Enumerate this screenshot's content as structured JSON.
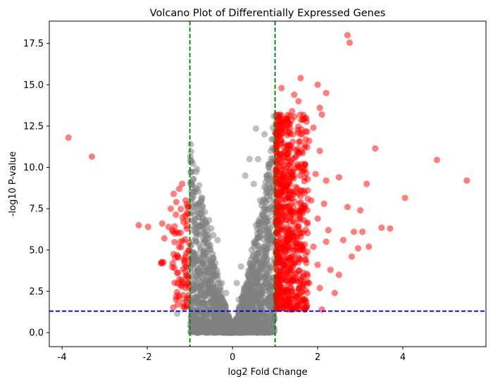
{
  "chart_data": {
    "type": "scatter",
    "title": "Volcano Plot of Differentially Expressed Genes",
    "xlabel": "log2 Fold Change",
    "ylabel": "-log10 P-value",
    "xlim": [
      -4.3,
      5.95
    ],
    "ylim": [
      -0.85,
      18.85
    ],
    "xticks": [
      -4,
      -2,
      0,
      2,
      4
    ],
    "yticks": [
      0.0,
      2.5,
      5.0,
      7.5,
      10.0,
      12.5,
      15.0,
      17.5
    ],
    "grid": false,
    "colors": {
      "significant": "#ff0000",
      "not_significant": "#808080",
      "fold_change_threshold_line": "#008000",
      "pvalue_threshold_line": "#0000cc"
    },
    "thresholds": {
      "log2_fold_change": [
        -1,
        1
      ],
      "neg_log10_pvalue": 1.3
    },
    "series": [
      {
        "values": [
          [
            -3.85,
            11.8
          ],
          [
            -3.3,
            10.65
          ],
          [
            -2.2,
            6.5
          ],
          [
            -1.98,
            6.4
          ],
          [
            -1.65,
            6.6
          ],
          [
            -1.6,
            5.7
          ],
          [
            -1.5,
            6.4
          ],
          [
            -1.45,
            7.5
          ],
          [
            -1.38,
            8.4
          ],
          [
            -1.32,
            7.9
          ],
          [
            -1.25,
            8.7
          ],
          [
            -1.18,
            9.0
          ],
          [
            -1.1,
            8.0
          ],
          [
            -1.05,
            7.6
          ],
          [
            -1.35,
            6.0
          ],
          [
            -1.22,
            5.5
          ],
          [
            -1.15,
            6.7
          ],
          [
            -1.28,
            4.6
          ],
          [
            -1.4,
            4.2
          ],
          [
            -1.3,
            3.6
          ],
          [
            -1.2,
            3.2
          ],
          [
            -1.1,
            2.7
          ],
          [
            -1.25,
            2.1
          ],
          [
            -1.15,
            1.55
          ],
          [
            -1.05,
            3.0
          ],
          [
            -1.08,
            4.8
          ],
          [
            -1.65,
            4.2
          ],
          [
            -1.62,
            4.25
          ],
          [
            -1.68,
            4.2
          ],
          [
            -1.66,
            4.28
          ]
        ]
      },
      {
        "values": [
          [
            2.7,
            18.0
          ],
          [
            2.75,
            17.55
          ],
          [
            1.6,
            15.4
          ],
          [
            2.0,
            15.0
          ],
          [
            2.2,
            14.5
          ],
          [
            1.15,
            14.8
          ],
          [
            1.45,
            14.4
          ],
          [
            1.55,
            14.0
          ],
          [
            1.7,
            13.0
          ],
          [
            2.05,
            13.6
          ],
          [
            2.1,
            13.2
          ],
          [
            1.9,
            12.4
          ],
          [
            1.4,
            13.4
          ],
          [
            1.2,
            12.9
          ],
          [
            1.3,
            12.1
          ],
          [
            1.6,
            12.0
          ],
          [
            1.8,
            11.6
          ],
          [
            2.05,
            11.0
          ],
          [
            1.5,
            11.0
          ],
          [
            1.25,
            10.6
          ],
          [
            1.7,
            10.2
          ],
          [
            1.95,
            9.6
          ],
          [
            2.2,
            9.2
          ],
          [
            1.4,
            9.5
          ],
          [
            1.6,
            8.6
          ],
          [
            1.85,
            8.0
          ],
          [
            2.15,
            7.8
          ],
          [
            1.3,
            8.2
          ],
          [
            1.55,
            7.3
          ],
          [
            1.75,
            6.6
          ],
          [
            2.0,
            6.9
          ],
          [
            2.25,
            6.2
          ],
          [
            1.35,
            6.7
          ],
          [
            1.6,
            5.8
          ],
          [
            1.9,
            5.2
          ],
          [
            2.2,
            5.5
          ],
          [
            1.45,
            5.0
          ],
          [
            1.7,
            4.4
          ],
          [
            2.0,
            4.1
          ],
          [
            2.3,
            3.8
          ],
          [
            1.5,
            3.6
          ],
          [
            1.8,
            3.0
          ],
          [
            2.05,
            2.7
          ],
          [
            1.3,
            2.3
          ],
          [
            1.6,
            1.9
          ],
          [
            2.1,
            1.4
          ],
          [
            1.1,
            1.55
          ],
          [
            1.05,
            3.0
          ],
          [
            1.1,
            4.5
          ],
          [
            1.05,
            6.0
          ],
          [
            1.1,
            7.5
          ],
          [
            1.05,
            9.0
          ],
          [
            1.1,
            10.5
          ],
          [
            1.05,
            12.0
          ],
          [
            2.4,
            2.4
          ],
          [
            2.5,
            3.5
          ],
          [
            2.5,
            9.4
          ],
          [
            2.6,
            5.6
          ],
          [
            2.7,
            7.6
          ],
          [
            2.8,
            4.6
          ],
          [
            2.85,
            6.1
          ],
          [
            2.95,
            5.1
          ],
          [
            3.0,
            7.4
          ],
          [
            3.05,
            6.1
          ],
          [
            3.15,
            9.0
          ],
          [
            3.2,
            5.2
          ],
          [
            3.35,
            11.15
          ],
          [
            3.5,
            6.35
          ],
          [
            3.7,
            6.3
          ],
          [
            4.05,
            8.15
          ],
          [
            4.8,
            10.45
          ],
          [
            5.5,
            9.2
          ]
        ]
      },
      {
        "values": [
          [
            -0.98,
            9.7
          ],
          [
            -0.92,
            9.3
          ],
          [
            -0.95,
            9.0
          ],
          [
            -0.72,
            8.0
          ],
          [
            -0.7,
            7.6
          ],
          [
            -0.65,
            7.3
          ],
          [
            -0.8,
            7.0
          ],
          [
            -0.55,
            6.8
          ],
          [
            -0.6,
            6.5
          ],
          [
            -0.5,
            6.3
          ],
          [
            -0.45,
            5.9
          ],
          [
            -0.35,
            5.6
          ],
          [
            -0.8,
            6.0
          ],
          [
            -0.85,
            5.5
          ],
          [
            -0.75,
            5.0
          ],
          [
            -0.9,
            4.6
          ],
          [
            -0.7,
            4.2
          ],
          [
            -0.6,
            3.8
          ],
          [
            -0.85,
            3.4
          ],
          [
            -0.5,
            3.2
          ],
          [
            -0.75,
            2.8
          ],
          [
            -0.4,
            2.5
          ],
          [
            -0.65,
            2.2
          ],
          [
            -0.3,
            1.9
          ],
          [
            -0.55,
            1.6
          ],
          [
            -0.2,
            1.3
          ],
          [
            -0.45,
            1.0
          ],
          [
            -0.1,
            0.7
          ],
          [
            -0.3,
            0.4
          ],
          [
            0.0,
            0.1
          ],
          [
            0.1,
            0.5
          ],
          [
            0.2,
            1.0
          ],
          [
            0.3,
            1.6
          ],
          [
            0.25,
            2.2
          ],
          [
            0.4,
            2.8
          ],
          [
            0.35,
            3.5
          ],
          [
            0.5,
            4.2
          ],
          [
            0.45,
            5.0
          ],
          [
            0.6,
            5.7
          ],
          [
            0.55,
            6.5
          ],
          [
            0.7,
            7.2
          ],
          [
            0.65,
            8.0
          ],
          [
            0.75,
            8.8
          ],
          [
            0.8,
            9.5
          ],
          [
            0.85,
            10.2
          ],
          [
            0.9,
            11.0
          ],
          [
            0.92,
            11.7
          ],
          [
            0.95,
            12.4
          ],
          [
            0.97,
            13.1
          ],
          [
            0.75,
            12.0
          ],
          [
            0.55,
            12.35
          ],
          [
            0.6,
            10.5
          ],
          [
            0.4,
            10.5
          ],
          [
            0.3,
            9.5
          ],
          [
            0.2,
            4.0
          ],
          [
            0.1,
            3.0
          ],
          [
            0.15,
            2.0
          ],
          [
            -0.15,
            2.4
          ],
          [
            -0.25,
            3.0
          ],
          [
            0.5,
            9.0
          ],
          [
            0.7,
            4.0
          ],
          [
            0.8,
            3.0
          ],
          [
            0.9,
            2.0
          ],
          [
            0.95,
            1.5
          ],
          [
            -0.95,
            1.2
          ],
          [
            -0.98,
            2.0
          ],
          [
            -1.3,
            1.15
          ]
        ]
      }
    ]
  }
}
